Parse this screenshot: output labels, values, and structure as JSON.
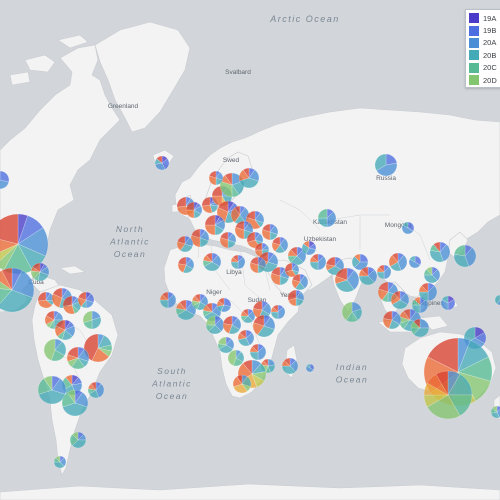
{
  "ocean_labels": [
    {
      "id": "arctic",
      "text": "Arctic Ocean"
    },
    {
      "id": "north-atlantic",
      "lines": [
        "North",
        "Atlantic",
        "Ocean"
      ]
    },
    {
      "id": "south-atlantic",
      "lines": [
        "South",
        "Atlantic",
        "Ocean"
      ]
    },
    {
      "id": "indian",
      "lines": [
        "Indian",
        "Ocean"
      ]
    }
  ],
  "country_labels": [
    "Greenland",
    "Svalbard",
    "Russia",
    "Kazakhstan",
    "Mongolia",
    "Uzbekistan",
    "Libya",
    "Niger",
    "Sudan",
    "Yemen",
    "Cuba",
    "Philippines",
    "Swed"
  ],
  "legend": [
    {
      "label": "19A",
      "color": "#4a3cc9"
    },
    {
      "label": "19B",
      "color": "#4d6ee0"
    },
    {
      "label": "20A",
      "color": "#4a8fd6"
    },
    {
      "label": "20B",
      "color": "#45aab8"
    },
    {
      "label": "20C",
      "color": "#56ba94"
    },
    {
      "label": "20D",
      "color": "#84c56f"
    }
  ],
  "clade_colors": {
    "19A": "#4a3cc9",
    "19B": "#4d6ee0",
    "20A": "#4a8fd6",
    "20B": "#45aab8",
    "20C": "#56ba94",
    "20D": "#84c56f",
    "20E": "#c2c548",
    "20F": "#e8a93a",
    "20G": "#ec6a35",
    "20H": "#d94330"
  },
  "colors": {
    "ocean": "#d2d6da",
    "land": "#f4f4f4",
    "border": "#c9ccd0"
  }
}
